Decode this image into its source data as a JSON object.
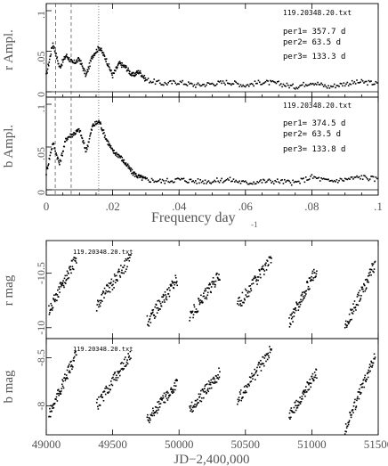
{
  "panels": {
    "r_ampl": {
      "file": "119.20348.20.txt",
      "ylabel": "r Ampl.",
      "per1": "per1= 357.7 d",
      "per2": "per2=   63.5 d",
      "per3": "per3= 133.3 d",
      "yticks": [
        "0",
        ".05",
        ".1"
      ]
    },
    "b_ampl": {
      "file": "119.20348.20.txt",
      "ylabel": "b Ampl.",
      "per1": "per1= 374.5 d",
      "per2": "per2=   63.5 d",
      "per3": "per3= 133.8 d",
      "yticks": [
        "0",
        ".05",
        ".1"
      ]
    },
    "r_mag": {
      "file": "119.20348.20.txt",
      "ylabel": "r mag",
      "yticks": [
        "-10.5",
        "-10"
      ]
    },
    "b_mag": {
      "file": "119.20348.20.txt",
      "ylabel": "b mag",
      "yticks": [
        "-8.5",
        "-8"
      ]
    }
  },
  "freq_axis": {
    "xlabel": "Frequency day",
    "exponent": "-1",
    "ticks": [
      "0",
      ".02",
      ".04",
      ".06",
      ".08",
      ".1"
    ]
  },
  "jd_axis": {
    "xlabel": "JD−2,400,000",
    "ticks": [
      "49000",
      "49500",
      "50000",
      "50500",
      "51000",
      "51500"
    ]
  },
  "chart_data": [
    {
      "type": "line",
      "name": "r amplitude spectrum",
      "xlim": [
        0,
        0.1
      ],
      "ylim": [
        0,
        0.1
      ],
      "x": [
        0.0,
        0.002,
        0.004,
        0.006,
        0.008,
        0.01,
        0.012,
        0.014,
        0.016,
        0.018,
        0.02,
        0.022,
        0.024,
        0.026,
        0.028,
        0.03,
        0.035,
        0.04,
        0.045,
        0.05,
        0.055,
        0.06,
        0.065,
        0.07,
        0.075,
        0.08,
        0.085,
        0.09,
        0.095,
        0.1
      ],
      "values": [
        0.02,
        0.06,
        0.03,
        0.045,
        0.035,
        0.04,
        0.02,
        0.045,
        0.055,
        0.04,
        0.02,
        0.035,
        0.03,
        0.02,
        0.025,
        0.015,
        0.01,
        0.012,
        0.008,
        0.01,
        0.012,
        0.008,
        0.012,
        0.01,
        0.006,
        0.012,
        0.006,
        0.01,
        0.012,
        0.01
      ],
      "markers": [
        0.0028,
        0.0075,
        0.0158
      ]
    },
    {
      "type": "line",
      "name": "b amplitude spectrum",
      "xlim": [
        0,
        0.1
      ],
      "ylim": [
        0,
        0.1
      ],
      "x": [
        0.0,
        0.002,
        0.004,
        0.006,
        0.008,
        0.01,
        0.012,
        0.014,
        0.016,
        0.018,
        0.02,
        0.022,
        0.024,
        0.026,
        0.028,
        0.03,
        0.035,
        0.04,
        0.045,
        0.05,
        0.055,
        0.06,
        0.065,
        0.07,
        0.075,
        0.08,
        0.085,
        0.09,
        0.095,
        0.1
      ],
      "values": [
        0.02,
        0.055,
        0.03,
        0.06,
        0.065,
        0.07,
        0.045,
        0.075,
        0.08,
        0.06,
        0.045,
        0.04,
        0.03,
        0.02,
        0.015,
        0.012,
        0.01,
        0.012,
        0.01,
        0.01,
        0.012,
        0.008,
        0.01,
        0.01,
        0.008,
        0.015,
        0.01,
        0.012,
        0.015,
        0.012
      ],
      "markers": [
        0.0027,
        0.0075,
        0.0158
      ]
    },
    {
      "type": "scatter",
      "name": "r magnitude",
      "xlim": [
        49000,
        51500
      ],
      "ylim": [
        -9.9,
        -10.8
      ],
      "segments": [
        {
          "x0": 49020,
          "x1": 49230,
          "y0": -10.15,
          "y1": -10.65
        },
        {
          "x0": 49380,
          "x1": 49640,
          "y0": -10.2,
          "y1": -10.65
        },
        {
          "x0": 49760,
          "x1": 49990,
          "y0": -10.05,
          "y1": -10.45
        },
        {
          "x0": 50080,
          "x1": 50310,
          "y0": -10.1,
          "y1": -10.5
        },
        {
          "x0": 50440,
          "x1": 50700,
          "y0": -10.2,
          "y1": -10.65
        },
        {
          "x0": 50830,
          "x1": 51040,
          "y0": -10.05,
          "y1": -10.55
        },
        {
          "x0": 51250,
          "x1": 51480,
          "y0": -10.0,
          "y1": -10.6
        }
      ]
    },
    {
      "type": "scatter",
      "name": "b magnitude",
      "xlim": [
        49000,
        51500
      ],
      "ylim": [
        -7.7,
        -8.7
      ],
      "segments": [
        {
          "x0": 49020,
          "x1": 49230,
          "y0": -7.9,
          "y1": -8.55
        },
        {
          "x0": 49380,
          "x1": 49640,
          "y0": -8.0,
          "y1": -8.55
        },
        {
          "x0": 49760,
          "x1": 49990,
          "y0": -7.85,
          "y1": -8.25
        },
        {
          "x0": 50080,
          "x1": 50310,
          "y0": -7.95,
          "y1": -8.35
        },
        {
          "x0": 50440,
          "x1": 50700,
          "y0": -8.05,
          "y1": -8.6
        },
        {
          "x0": 50830,
          "x1": 51040,
          "y0": -7.9,
          "y1": -8.35
        },
        {
          "x0": 51250,
          "x1": 51480,
          "y0": -7.75,
          "y1": -8.55
        }
      ]
    }
  ]
}
